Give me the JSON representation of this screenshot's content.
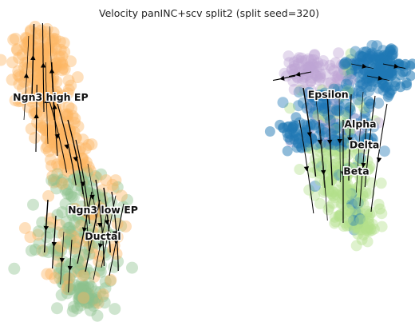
{
  "chart_data": {
    "type": "scatter",
    "title": "Velocity panINC+scv split2 (split seed=320)",
    "xlabel": "",
    "ylabel": "",
    "grid": false,
    "axes_visible": false,
    "legend": "on data",
    "clusters": [
      {
        "label": "Ngn3 high EP",
        "color": "#fdb462",
        "centroid": [
          11,
          26
        ]
      },
      {
        "label": "Ngn3 low EP",
        "color": "#fdb462",
        "centroid": [
          24,
          64
        ]
      },
      {
        "label": "Ductal",
        "color": "#8dc28d",
        "centroid": [
          24,
          73
        ]
      },
      {
        "label": "Epsilon",
        "color": "#bfa5d4",
        "centroid": [
          80,
          25
        ]
      },
      {
        "label": "Alpha",
        "color": "#1f78b4",
        "centroid": [
          88,
          35
        ]
      },
      {
        "label": "Delta",
        "color": "#1f78b4",
        "centroid": [
          89,
          42
        ]
      },
      {
        "label": "Beta",
        "color": "#b2df8a",
        "centroid": [
          87,
          51
        ]
      }
    ],
    "overlay": "velocity streamlines (black arrows)"
  },
  "colors": {
    "ngn3": "#fdb462",
    "ductal": "#8dc28d",
    "epsilon": "#bfa5d4",
    "alpha": "#1f78b4",
    "beta": "#b2df8a",
    "stream": "#000000"
  }
}
